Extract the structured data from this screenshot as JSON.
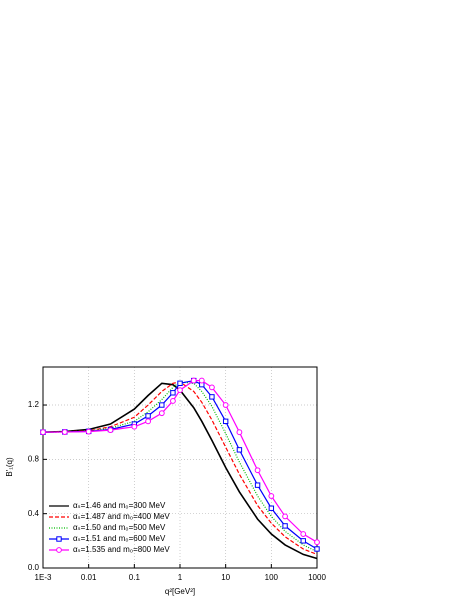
{
  "chart_data": {
    "type": "line",
    "x_label": "q²[GeV²]",
    "y_label": "B'₁(q)",
    "x": [
      0.001,
      0.003,
      0.01,
      0.03,
      0.1,
      0.2,
      0.4,
      0.7,
      1,
      2,
      3,
      5,
      10,
      20,
      50,
      100,
      200,
      500,
      1000
    ],
    "series": [
      {
        "name": "αₛ=1.46  and m₀=300 MeV",
        "color": "#000000",
        "dash": "solid",
        "marker": "none",
        "values": [
          1.0,
          1.005,
          1.02,
          1.06,
          1.17,
          1.27,
          1.36,
          1.35,
          1.31,
          1.18,
          1.08,
          0.94,
          0.74,
          0.56,
          0.36,
          0.25,
          0.17,
          0.1,
          0.07
        ]
      },
      {
        "name": "αₛ=1.487 and m₀=400 MeV",
        "color": "#ff0000",
        "dash": "dashed",
        "marker": "none",
        "values": [
          1.0,
          1.003,
          1.01,
          1.04,
          1.11,
          1.2,
          1.3,
          1.36,
          1.37,
          1.3,
          1.22,
          1.09,
          0.89,
          0.69,
          0.46,
          0.33,
          0.23,
          0.14,
          0.1
        ]
      },
      {
        "name": "αₛ=1.50  and m₀=500 MeV",
        "color": "#00bb00",
        "dash": "dotted",
        "marker": "none",
        "values": [
          1.0,
          1.002,
          1.008,
          1.03,
          1.08,
          1.15,
          1.24,
          1.33,
          1.37,
          1.36,
          1.3,
          1.19,
          0.99,
          0.78,
          0.53,
          0.38,
          0.27,
          0.17,
          0.12
        ]
      },
      {
        "name": "αₛ=1.51  and m₀=600 MeV",
        "color": "#0000ff",
        "dash": "solid",
        "marker": "square",
        "values": [
          1.0,
          1.002,
          1.006,
          1.02,
          1.06,
          1.12,
          1.2,
          1.29,
          1.36,
          1.38,
          1.35,
          1.26,
          1.08,
          0.87,
          0.61,
          0.44,
          0.31,
          0.2,
          0.14
        ]
      },
      {
        "name": "αₛ=1.535 and m₀=800 MeV",
        "color": "#ff00ff",
        "dash": "solid",
        "marker": "circle",
        "values": [
          1.0,
          1.001,
          1.004,
          1.015,
          1.04,
          1.08,
          1.14,
          1.23,
          1.31,
          1.38,
          1.38,
          1.33,
          1.2,
          1.0,
          0.72,
          0.53,
          0.38,
          0.25,
          0.19
        ]
      }
    ],
    "xlim": [
      0.001,
      1000
    ],
    "ylim": [
      0,
      1.48
    ],
    "log_x": true,
    "grid": true,
    "xticks": [
      {
        "value": 0.001,
        "label": "1E-3"
      },
      0.01,
      0.1,
      1,
      10,
      100,
      1000
    ],
    "yticks": [
      {
        "value": 0,
        "label": "0.0"
      },
      0.4,
      0.8,
      1.2
    ],
    "legend": "lower-left"
  }
}
